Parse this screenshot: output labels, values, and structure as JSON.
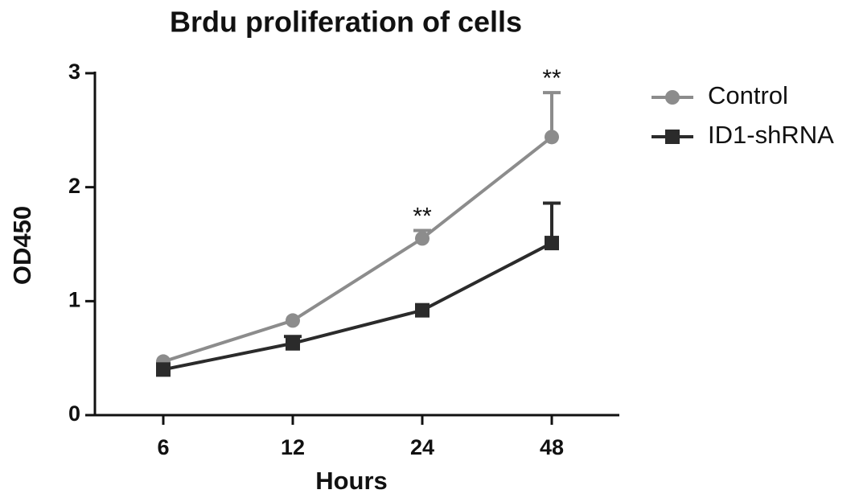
{
  "chart_data": {
    "type": "line",
    "title": "Brdu proliferation of cells",
    "x_label": "Hours",
    "y_label": "OD450",
    "categories": [
      "6",
      "12",
      "24",
      "48"
    ],
    "series": [
      {
        "name": "Control",
        "color": "#8c8c8c",
        "marker": "circle",
        "values": [
          0.47,
          0.83,
          1.55,
          2.44
        ],
        "errors": [
          null,
          null,
          0.07,
          0.39
        ]
      },
      {
        "name": "ID1-shRNA",
        "color": "#2b2b2b",
        "marker": "square",
        "values": [
          0.4,
          0.63,
          0.92,
          1.51
        ],
        "errors": [
          null,
          0.06,
          null,
          0.35
        ]
      }
    ],
    "annotations": [
      {
        "text": "**",
        "category": "24"
      },
      {
        "text": "**",
        "category": "48"
      }
    ],
    "ylim": [
      0,
      3
    ],
    "yticks": [
      0,
      1,
      2,
      3
    ],
    "legend": "right"
  }
}
